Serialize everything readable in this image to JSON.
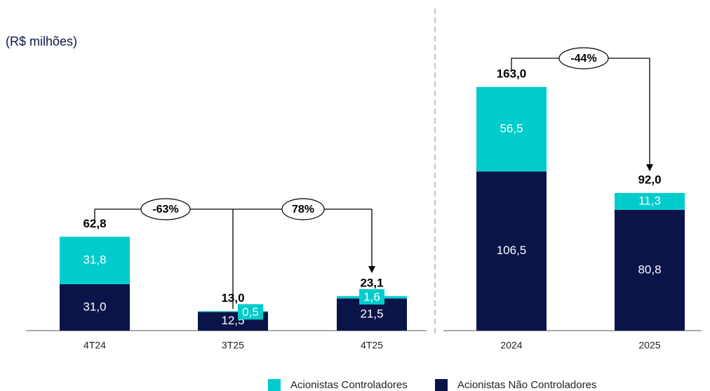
{
  "chart_data": {
    "type": "stacked-bar",
    "subtitle": "(R$ milhões)",
    "categories": [
      "4T24",
      "3T25",
      "4T25",
      "2024",
      "2025"
    ],
    "series": [
      {
        "name": "Acionistas Controladores",
        "color": "#00cccc",
        "values": [
          31.8,
          0.5,
          1.6,
          56.5,
          11.3
        ],
        "value_labels": [
          "31,8",
          "0,5",
          "1,6",
          "56,5",
          "11,3"
        ]
      },
      {
        "name": "Acionistas Não Controladores",
        "color": "#0a1448",
        "values": [
          31.0,
          12.5,
          21.5,
          106.5,
          80.8
        ],
        "value_labels": [
          "31,0",
          "12,5",
          "21,5",
          "106,5",
          "80,8"
        ]
      }
    ],
    "totals": [
      62.8,
      13.0,
      23.1,
      163.0,
      92.0
    ],
    "total_labels": [
      "62,8",
      "13,0",
      "23,1",
      "163,0",
      "92,0"
    ],
    "annotations": [
      "-63%",
      "78%",
      "-44%"
    ],
    "ylim": [
      0,
      170
    ]
  }
}
